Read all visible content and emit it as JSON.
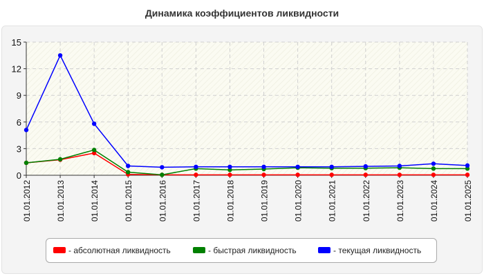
{
  "chart_data": {
    "type": "line",
    "title": "Динамика коэффициентов ликвидности",
    "categories": [
      "01.01.2012",
      "01.01.2013",
      "01.01.2014",
      "01.01.2015",
      "01.01.2016",
      "01.01.2017",
      "01.01.2018",
      "01.01.2019",
      "01.01.2020",
      "01.01.2021",
      "01.01.2022",
      "01.01.2023",
      "01.01.2024",
      "01.01.2025"
    ],
    "ylim": [
      0,
      15
    ],
    "yticks": [
      "0",
      "3",
      "6",
      "9",
      "12",
      "15"
    ],
    "grid": true,
    "legend_position": "bottom",
    "series": [
      {
        "name": "- абсолютная ликвидность",
        "color": "#ff0000",
        "values": [
          1.4,
          1.75,
          2.5,
          0.1,
          0.05,
          0.05,
          0.05,
          0.05,
          0.05,
          0.05,
          0.05,
          0.05,
          0.05,
          0.05
        ]
      },
      {
        "name": "- быстрая ликвидность",
        "color": "#008000",
        "values": [
          1.4,
          1.8,
          2.85,
          0.35,
          0.05,
          0.75,
          0.6,
          0.7,
          0.85,
          0.8,
          0.8,
          0.85,
          0.75,
          0.75
        ]
      },
      {
        "name": "- текущая ликвидность",
        "color": "#0000ff",
        "values": [
          5.1,
          13.5,
          5.8,
          1.05,
          0.9,
          0.95,
          0.95,
          0.95,
          0.95,
          0.95,
          1.0,
          1.05,
          1.3,
          1.1
        ]
      }
    ]
  }
}
